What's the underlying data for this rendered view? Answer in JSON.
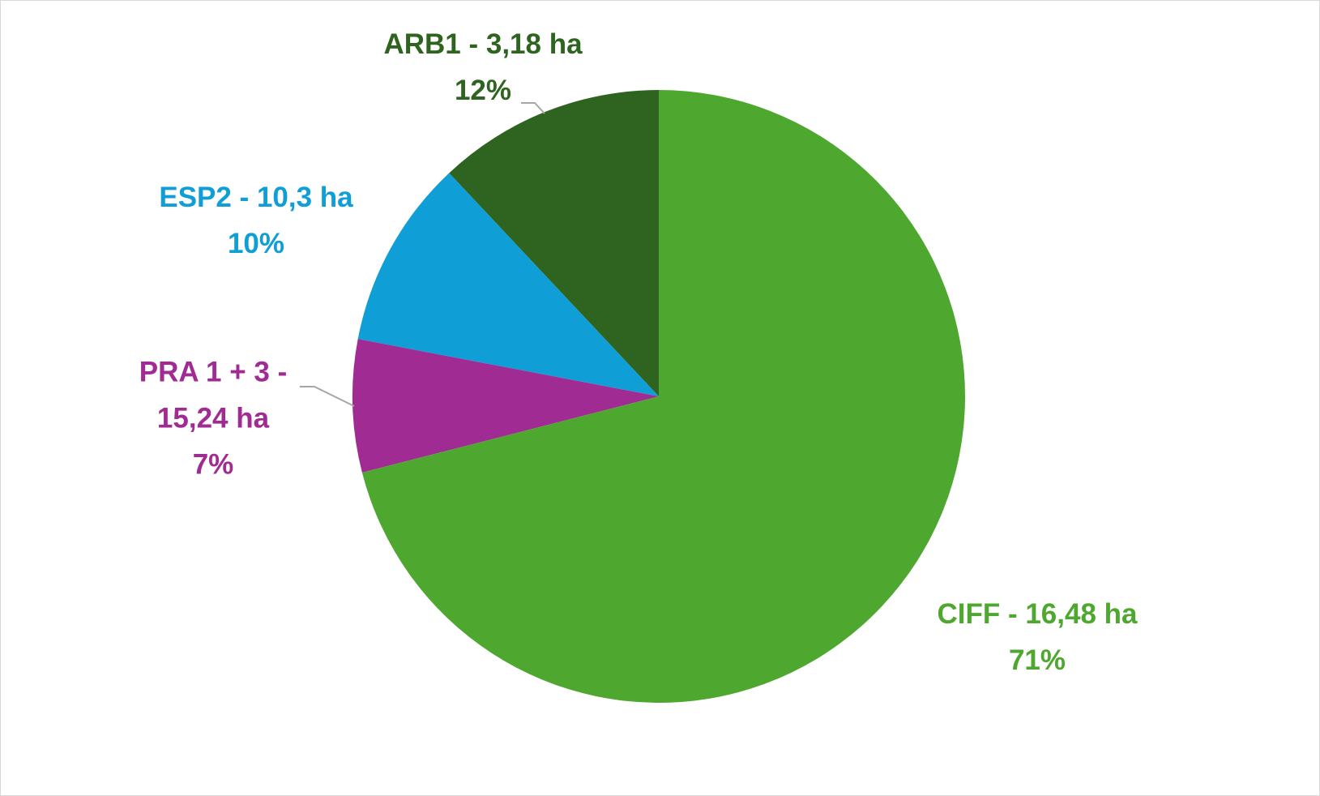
{
  "chart_data": {
    "type": "pie",
    "categories": [
      "CIFF - 16,48 ha",
      "PRA 1 + 3 - 15,24 ha",
      "ESP2 - 10,3 ha",
      "ARB1 - 3,18 ha"
    ],
    "values": [
      71,
      7,
      10,
      12
    ],
    "value_labels": [
      "71%",
      "7%",
      "10%",
      "12%"
    ],
    "colors": [
      "#4ea72e",
      "#a02b93",
      "#0f9ed5",
      "#2e641f"
    ]
  }
}
